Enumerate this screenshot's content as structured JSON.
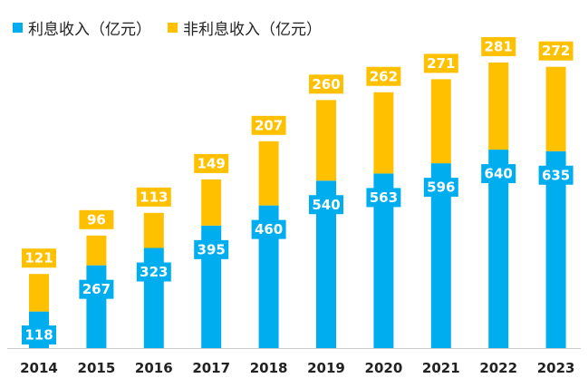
{
  "chart_data": {
    "type": "bar",
    "stacked": true,
    "categories": [
      "2014",
      "2015",
      "2016",
      "2017",
      "2018",
      "2019",
      "2020",
      "2021",
      "2022",
      "2023"
    ],
    "series": [
      {
        "name": "利息收入（亿元）",
        "values": [
          118,
          267,
          323,
          395,
          460,
          540,
          563,
          596,
          640,
          635
        ],
        "color": "#00AEEF"
      },
      {
        "name": "非利息收入（亿元）",
        "values": [
          121,
          96,
          113,
          149,
          207,
          260,
          262,
          271,
          281,
          272
        ],
        "color": "#FFC000"
      }
    ],
    "ylim": [
      0,
      950
    ],
    "grid": false,
    "legend": "top-left",
    "title": "",
    "xlabel": "",
    "ylabel": ""
  }
}
